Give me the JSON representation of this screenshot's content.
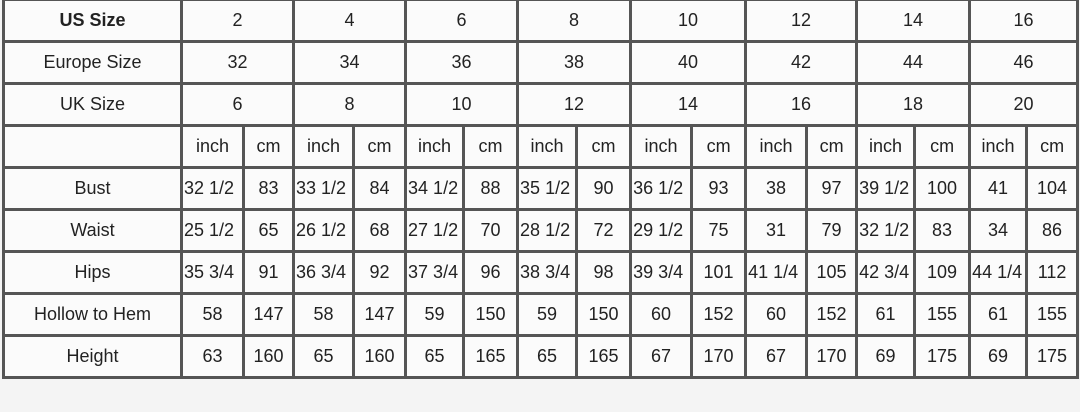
{
  "header_rows": [
    {
      "label": "US Size",
      "bold": true,
      "values": [
        "2",
        "4",
        "6",
        "8",
        "10",
        "12",
        "14",
        "16"
      ]
    },
    {
      "label": "Europe Size",
      "values": [
        "32",
        "34",
        "36",
        "38",
        "40",
        "42",
        "44",
        "46"
      ]
    },
    {
      "label": "UK Size",
      "values": [
        "6",
        "8",
        "10",
        "12",
        "14",
        "16",
        "18",
        "20"
      ]
    }
  ],
  "units": {
    "label": "",
    "inch": "inch",
    "cm": "cm"
  },
  "measurement_rows": [
    {
      "label": "Bust",
      "values": [
        [
          "32 1/2",
          "83"
        ],
        [
          "33 1/2",
          "84"
        ],
        [
          "34 1/2",
          "88"
        ],
        [
          "35 1/2",
          "90"
        ],
        [
          "36 1/2",
          "93"
        ],
        [
          "38",
          "97"
        ],
        [
          "39 1/2",
          "100"
        ],
        [
          "41",
          "104"
        ]
      ]
    },
    {
      "label": "Waist",
      "values": [
        [
          "25 1/2",
          "65"
        ],
        [
          "26 1/2",
          "68"
        ],
        [
          "27 1/2",
          "70"
        ],
        [
          "28 1/2",
          "72"
        ],
        [
          "29 1/2",
          "75"
        ],
        [
          "31",
          "79"
        ],
        [
          "32 1/2",
          "83"
        ],
        [
          "34",
          "86"
        ]
      ]
    },
    {
      "label": "Hips",
      "values": [
        [
          "35 3/4",
          "91"
        ],
        [
          "36 3/4",
          "92"
        ],
        [
          "37 3/4",
          "96"
        ],
        [
          "38 3/4",
          "98"
        ],
        [
          "39 3/4",
          "101"
        ],
        [
          "41 1/4",
          "105"
        ],
        [
          "42 3/4",
          "109"
        ],
        [
          "44 1/4",
          "112"
        ]
      ]
    },
    {
      "label": "Hollow to Hem",
      "values": [
        [
          "58",
          "147"
        ],
        [
          "58",
          "147"
        ],
        [
          "59",
          "150"
        ],
        [
          "59",
          "150"
        ],
        [
          "60",
          "152"
        ],
        [
          "60",
          "152"
        ],
        [
          "61",
          "155"
        ],
        [
          "61",
          "155"
        ]
      ]
    },
    {
      "label": "Height",
      "values": [
        [
          "63",
          "160"
        ],
        [
          "65",
          "160"
        ],
        [
          "65",
          "165"
        ],
        [
          "65",
          "165"
        ],
        [
          "67",
          "170"
        ],
        [
          "67",
          "170"
        ],
        [
          "69",
          "175"
        ],
        [
          "69",
          "175"
        ]
      ]
    }
  ]
}
